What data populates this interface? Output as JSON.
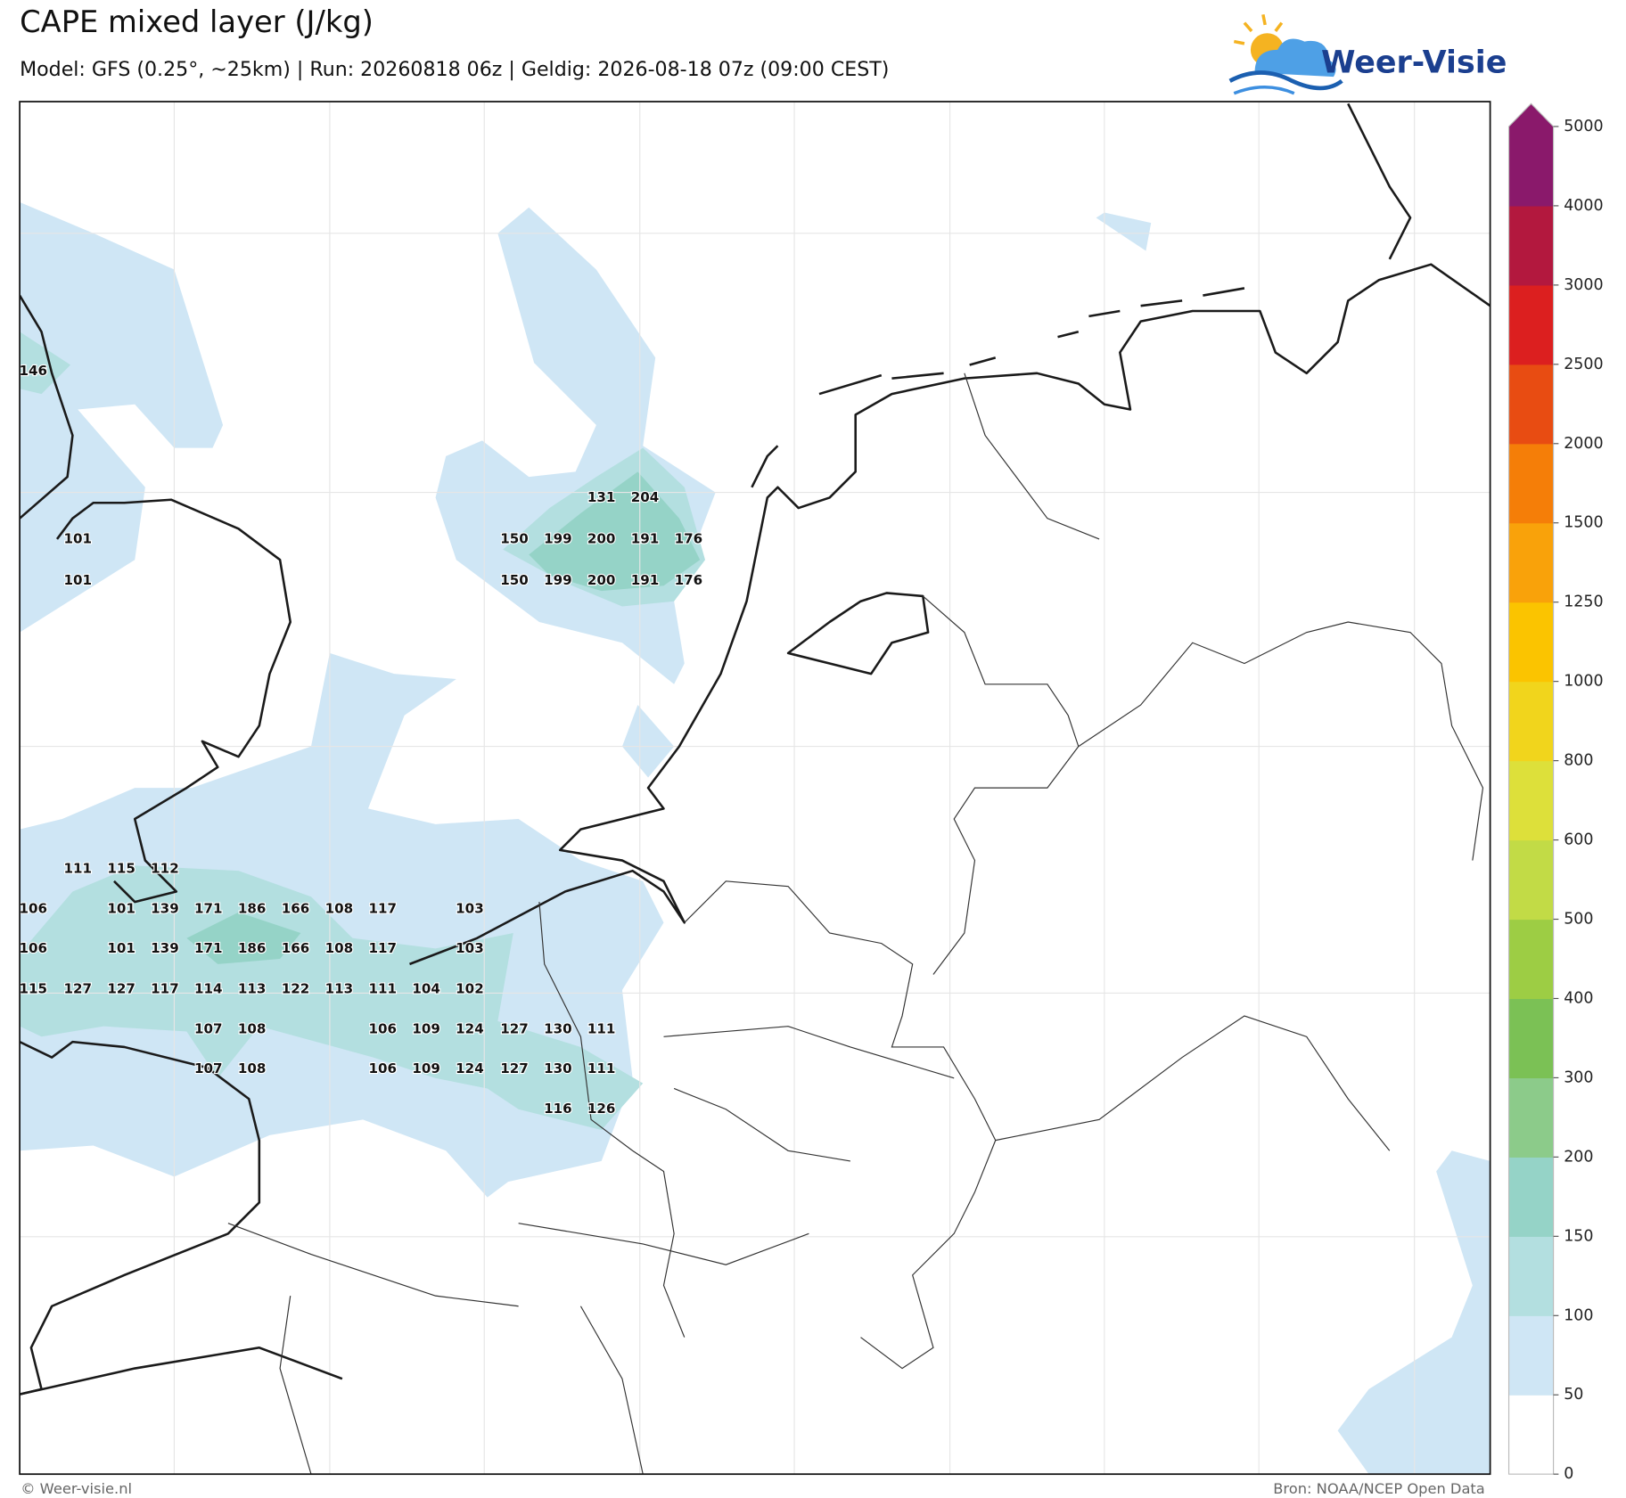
{
  "header": {
    "title": "CAPE mixed layer (J/kg)",
    "subtitle": "Model: GFS (0.25°, ~25km)  |  Run: 20260818 06z  |  Geldig: 2026-08-18 07z (09:00 CEST)",
    "logo": "Weer-Visie"
  },
  "map": {
    "labels": [
      146,
      131,
      204,
      101,
      150,
      199,
      200,
      191,
      176,
      101,
      150,
      199,
      200,
      191,
      176,
      111,
      115,
      112,
      106,
      101,
      139,
      171,
      186,
      166,
      108,
      117,
      103,
      106,
      101,
      139,
      171,
      186,
      166,
      108,
      117,
      103,
      115,
      127,
      127,
      117,
      114,
      113,
      122,
      113,
      111,
      104,
      102,
      107,
      108,
      106,
      109,
      124,
      127,
      130,
      111,
      107,
      108,
      106,
      109,
      124,
      127,
      130,
      111,
      116,
      126
    ]
  },
  "colorbar": {
    "ticks": [
      0,
      50,
      100,
      150,
      200,
      300,
      400,
      500,
      600,
      800,
      1000,
      1250,
      1500,
      2000,
      2500,
      3000,
      4000,
      5000
    ],
    "colors": [
      "#ffffff",
      "#cfe6f5",
      "#b3dfe0",
      "#95d3c7",
      "#8ccb8a",
      "#7bc155",
      "#9dcd44",
      "#c2db46",
      "#dde03a",
      "#f1d51c",
      "#fbc400",
      "#f9a20a",
      "#f57e08",
      "#e84c12",
      "#dc1f1f",
      "#b3183e",
      "#8a196b"
    ]
  },
  "footer": {
    "left": "© Weer-visie.nl",
    "right": "Bron: NOAA/NCEP Open Data"
  }
}
